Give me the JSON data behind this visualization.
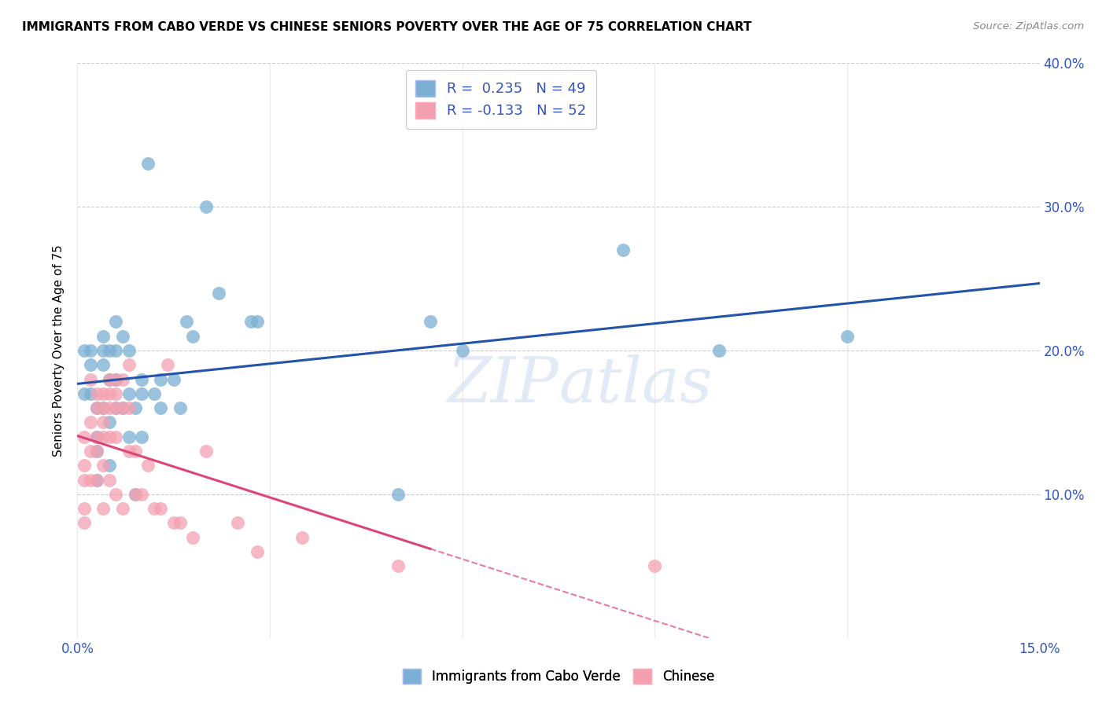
{
  "title": "IMMIGRANTS FROM CABO VERDE VS CHINESE SENIORS POVERTY OVER THE AGE OF 75 CORRELATION CHART",
  "source": "Source: ZipAtlas.com",
  "ylabel": "Seniors Poverty Over the Age of 75",
  "x_min": 0.0,
  "x_max": 0.15,
  "y_min": 0.0,
  "y_max": 0.4,
  "x_ticks": [
    0.0,
    0.03,
    0.06,
    0.09,
    0.12,
    0.15
  ],
  "x_tick_labels": [
    "0.0%",
    "",
    "",
    "",
    "",
    "15.0%"
  ],
  "y_ticks": [
    0.0,
    0.1,
    0.2,
    0.3,
    0.4
  ],
  "y_right_labels": [
    "",
    "10.0%",
    "20.0%",
    "30.0%",
    "40.0%"
  ],
  "cabo_verde_color": "#7bafd4",
  "chinese_color": "#f4a0b0",
  "cabo_verde_R": 0.235,
  "cabo_verde_N": 49,
  "chinese_R": -0.133,
  "chinese_N": 52,
  "cabo_verde_line_color": "#2255aa",
  "chinese_line_color": "#dd4477",
  "watermark": "ZIPatlas",
  "cabo_verde_x": [
    0.001,
    0.001,
    0.002,
    0.002,
    0.002,
    0.003,
    0.003,
    0.003,
    0.003,
    0.004,
    0.004,
    0.004,
    0.004,
    0.005,
    0.005,
    0.005,
    0.005,
    0.006,
    0.006,
    0.006,
    0.006,
    0.007,
    0.007,
    0.008,
    0.008,
    0.008,
    0.009,
    0.009,
    0.01,
    0.01,
    0.01,
    0.011,
    0.012,
    0.013,
    0.013,
    0.015,
    0.016,
    0.017,
    0.018,
    0.02,
    0.022,
    0.027,
    0.028,
    0.05,
    0.055,
    0.06,
    0.085,
    0.1,
    0.12
  ],
  "cabo_verde_y": [
    0.17,
    0.2,
    0.2,
    0.19,
    0.17,
    0.16,
    0.14,
    0.13,
    0.11,
    0.21,
    0.2,
    0.19,
    0.16,
    0.2,
    0.18,
    0.15,
    0.12,
    0.22,
    0.2,
    0.18,
    0.16,
    0.21,
    0.16,
    0.2,
    0.17,
    0.14,
    0.16,
    0.1,
    0.18,
    0.17,
    0.14,
    0.33,
    0.17,
    0.18,
    0.16,
    0.18,
    0.16,
    0.22,
    0.21,
    0.3,
    0.24,
    0.22,
    0.22,
    0.1,
    0.22,
    0.2,
    0.27,
    0.2,
    0.21
  ],
  "chinese_x": [
    0.001,
    0.001,
    0.001,
    0.001,
    0.001,
    0.002,
    0.002,
    0.002,
    0.002,
    0.003,
    0.003,
    0.003,
    0.003,
    0.003,
    0.004,
    0.004,
    0.004,
    0.004,
    0.004,
    0.004,
    0.005,
    0.005,
    0.005,
    0.005,
    0.005,
    0.006,
    0.006,
    0.006,
    0.006,
    0.006,
    0.007,
    0.007,
    0.007,
    0.008,
    0.008,
    0.008,
    0.009,
    0.009,
    0.01,
    0.011,
    0.012,
    0.013,
    0.014,
    0.015,
    0.016,
    0.018,
    0.02,
    0.025,
    0.028,
    0.035,
    0.05,
    0.09
  ],
  "chinese_y": [
    0.14,
    0.12,
    0.11,
    0.09,
    0.08,
    0.18,
    0.15,
    0.13,
    0.11,
    0.17,
    0.16,
    0.14,
    0.13,
    0.11,
    0.17,
    0.16,
    0.15,
    0.14,
    0.12,
    0.09,
    0.18,
    0.17,
    0.16,
    0.14,
    0.11,
    0.18,
    0.17,
    0.16,
    0.14,
    0.1,
    0.18,
    0.16,
    0.09,
    0.19,
    0.16,
    0.13,
    0.13,
    0.1,
    0.1,
    0.12,
    0.09,
    0.09,
    0.19,
    0.08,
    0.08,
    0.07,
    0.13,
    0.08,
    0.06,
    0.07,
    0.05,
    0.05
  ]
}
